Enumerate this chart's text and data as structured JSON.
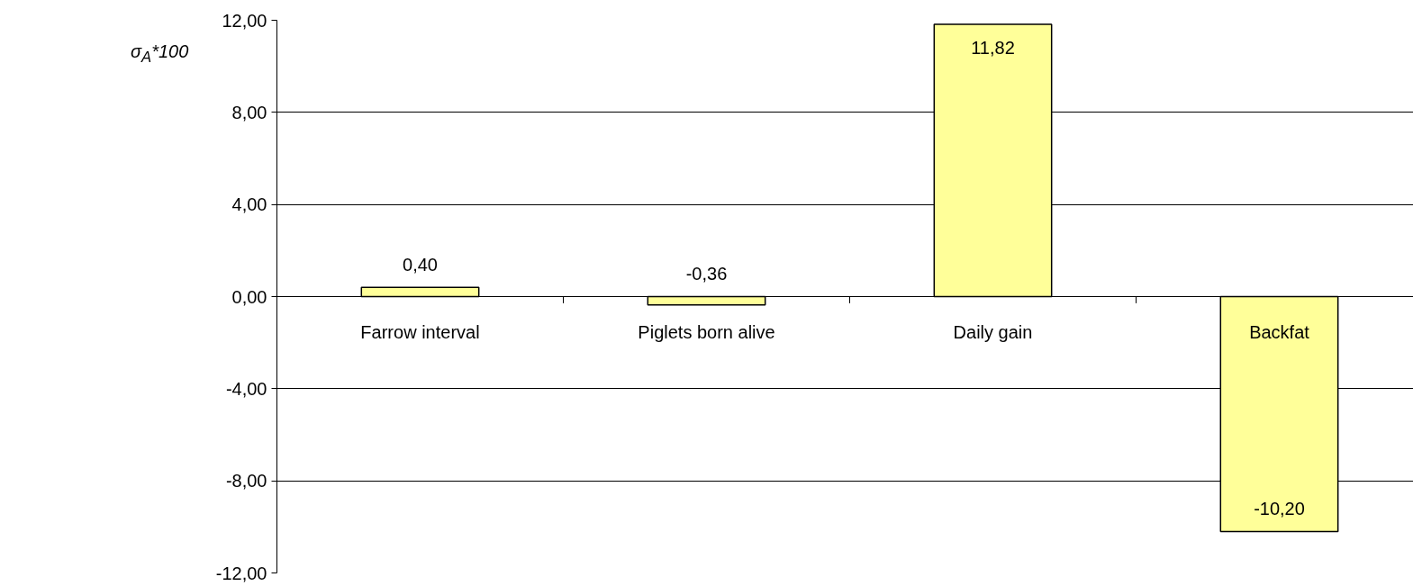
{
  "chart_data": {
    "type": "bar",
    "ylabel": "σ$_{A}$*100",
    "categories": [
      "Farrow interval",
      "Piglets born alive",
      "Daily gain",
      "Backfat"
    ],
    "values": [
      0.4,
      -0.36,
      11.82,
      -10.2
    ],
    "value_labels": [
      "0,40",
      "-0,36",
      "11,82",
      "-10,20"
    ],
    "color": "#ffff99",
    "ylim": [
      -12,
      12
    ],
    "yticks": [
      {
        "value": -12,
        "label": "-12,00"
      },
      {
        "value": -8,
        "label": "-8,00"
      },
      {
        "value": -4,
        "label": "-4,00"
      },
      {
        "value": 0,
        "label": "0,00"
      },
      {
        "value": 4,
        "label": "4,00"
      },
      {
        "value": 8,
        "label": "8,00"
      },
      {
        "value": 12,
        "label": "12,00"
      }
    ],
    "grid": "y"
  }
}
